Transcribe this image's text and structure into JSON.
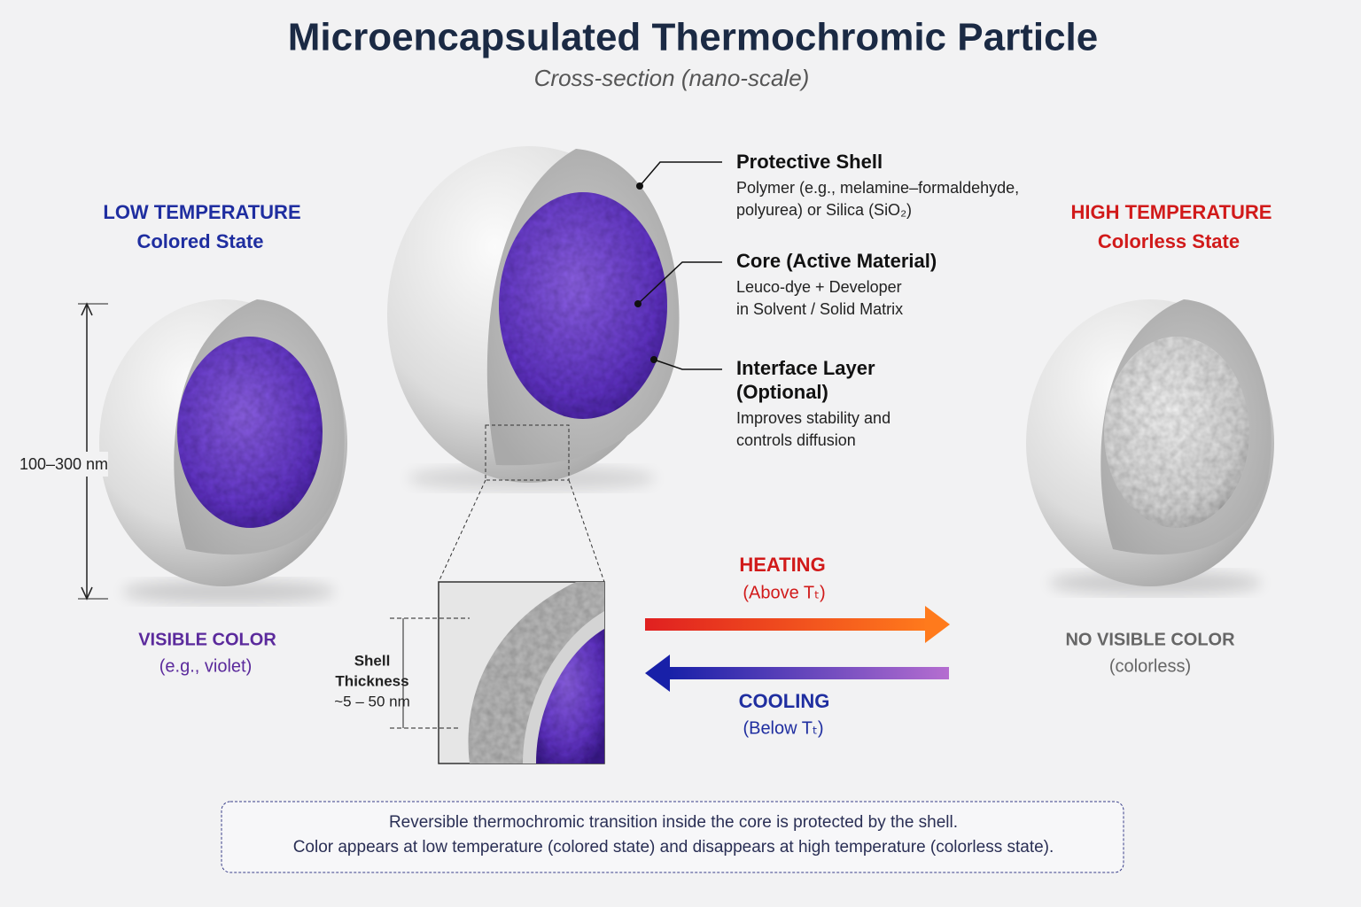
{
  "title": "Microencapsulated Thermochromic Particle",
  "subtitle": "Cross-section (nano-scale)",
  "left": {
    "heading": "LOW TEMPERATURE",
    "state": "Colored State",
    "size": "100–300 nm",
    "color_label": "VISIBLE COLOR",
    "color_note": "(e.g., violet)"
  },
  "right": {
    "heading": "HIGH TEMPERATURE",
    "state": "Colorless State",
    "color_label": "NO VISIBLE COLOR",
    "color_note": "(colorless)"
  },
  "callouts": [
    {
      "title": [
        "Protective Shell"
      ],
      "lines": [
        "Polymer (e.g., melamine–formaldehyde,",
        "polyurea) or Silica (SiO₂)"
      ]
    },
    {
      "title": [
        "Core (Active Material)"
      ],
      "lines": [
        "Leuco-dye + Developer",
        "in Solvent / Solid Matrix"
      ]
    },
    {
      "title": [
        "Interface Layer",
        "(Optional)"
      ],
      "lines": [
        "Improves stability and",
        "controls diffusion"
      ]
    }
  ],
  "inset": {
    "lines": [
      "Shell",
      "Thickness",
      "~5 – 50 nm"
    ]
  },
  "heating": {
    "label": "HEATING",
    "note": "(Above Tₜ)"
  },
  "cooling": {
    "label": "COOLING",
    "note": "(Below Tₜ)"
  },
  "footer": {
    "lines": [
      "Reversible thermochromic transition inside the core is protected by the shell.",
      "Color appears at low temperature (colored state) and disappears at high temperature (colorless state)."
    ]
  }
}
